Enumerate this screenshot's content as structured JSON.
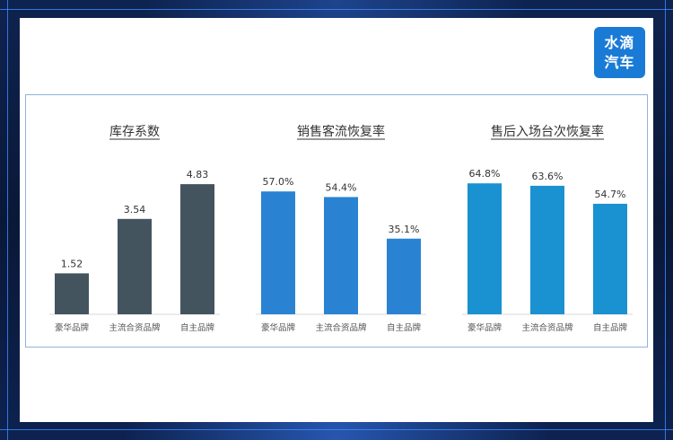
{
  "logo": {
    "line1": "水滴",
    "line2": "汽车"
  },
  "chart_data": [
    {
      "type": "bar",
      "title": "库存系数",
      "categories": [
        "豪华品牌",
        "主流合资品牌",
        "自主品牌"
      ],
      "values": [
        1.52,
        3.54,
        4.83
      ],
      "value_labels": [
        "1.52",
        "3.54",
        "4.83"
      ],
      "ylim": [
        0,
        6
      ],
      "color": "#44545f"
    },
    {
      "type": "bar",
      "title": "销售客流恢复率",
      "categories": [
        "豪华品牌",
        "主流合资品牌",
        "自主品牌"
      ],
      "values": [
        57.0,
        54.4,
        35.1
      ],
      "value_labels": [
        "57.0%",
        "54.4%",
        "35.1%"
      ],
      "ylim": [
        0,
        75
      ],
      "color": "#2a83d2"
    },
    {
      "type": "bar",
      "title": "售后入场台次恢复率",
      "categories": [
        "豪华品牌",
        "主流合资品牌",
        "自主品牌"
      ],
      "values": [
        64.8,
        63.6,
        54.7
      ],
      "value_labels": [
        "64.8%",
        "63.6%",
        "54.7%"
      ],
      "ylim": [
        0,
        80
      ],
      "color": "#1a91d0"
    }
  ]
}
